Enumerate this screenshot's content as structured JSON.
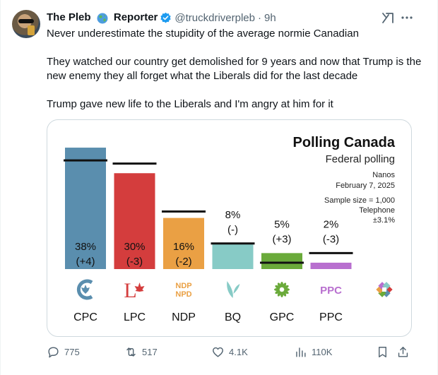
{
  "author": {
    "name_part1": "The Pleb",
    "name_part2": "Reporter",
    "handle": "@truckdriverpleb",
    "separator": "·",
    "time": "9h"
  },
  "icons": {
    "globe": "globe-emoji-icon",
    "verified": "verified-badge-icon",
    "grok": "grok-icon",
    "more": "more-dots-icon",
    "reply": "reply-icon",
    "retweet": "retweet-icon",
    "like": "heart-icon",
    "views": "views-icon",
    "bookmark": "bookmark-icon",
    "share": "share-icon"
  },
  "tweet": {
    "line1": "Never underestimate the stupidity of the average normie Canadian",
    "line2": "They watched our country get demolished for 9 years and now that Trump is the new enemy they all forget what the Liberals did for the last decade",
    "line3": "Trump gave new life to the Liberals and I'm angry at him for it"
  },
  "chart_data": {
    "type": "bar",
    "title": "Polling Canada",
    "subtitle": "Federal polling",
    "source": "Nanos",
    "date": "February 7, 2025",
    "sample_size": "Sample size = 1,000",
    "method": "Telephone",
    "margin": "±3.1%",
    "ylim": [
      0,
      40
    ],
    "categories": [
      "CPC",
      "LPC",
      "NDP",
      "BQ",
      "GPC",
      "PPC"
    ],
    "values": [
      38,
      30,
      16,
      8,
      5,
      2
    ],
    "previous": [
      34,
      33,
      18,
      8,
      2,
      5
    ],
    "value_labels": [
      "38%",
      "30%",
      "16%",
      "8%",
      "5%",
      "2%"
    ],
    "change_labels": [
      "(+4)",
      "(-3)",
      "(-2)",
      "(-)",
      "(+3)",
      "(-3)"
    ],
    "colors": [
      "#5a8eae",
      "#d43d3d",
      "#eaa044",
      "#87cbc6",
      "#6aaa3a",
      "#b86fcf"
    ],
    "logos": [
      {
        "name": "cpc-logo-icon",
        "text": ""
      },
      {
        "name": "lpc-logo-icon",
        "text": "L"
      },
      {
        "name": "ndp-logo-icon",
        "text": "NDP NPD"
      },
      {
        "name": "bq-logo-icon",
        "text": ""
      },
      {
        "name": "gpc-logo-icon",
        "text": ""
      },
      {
        "name": "ppc-logo-icon",
        "text": "PPC"
      }
    ],
    "extra_logo": "polling-canada-logo-icon"
  },
  "stats": {
    "replies": "775",
    "retweets": "517",
    "likes": "4.1K",
    "views": "110K"
  }
}
